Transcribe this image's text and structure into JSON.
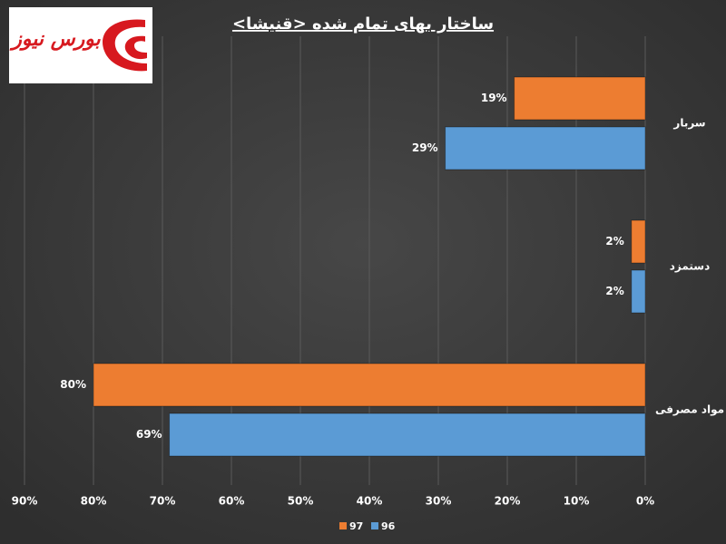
{
  "logo": "بورس نیوز",
  "chart_data": {
    "type": "barh",
    "title": "ساختار بهای تمام شده <قنیشا>",
    "categories": [
      "سربار",
      "دستمزد",
      "مواد مصرفی"
    ],
    "series": [
      {
        "name": "97",
        "color": "#ed7d31",
        "values": [
          19,
          2,
          80
        ],
        "value_labels": [
          "19%",
          "2%",
          "80%"
        ]
      },
      {
        "name": "96",
        "color": "#5b9bd5",
        "values": [
          29,
          2,
          69
        ],
        "value_labels": [
          "29%",
          "2%",
          "69%"
        ]
      }
    ],
    "xlim": [
      0,
      90
    ],
    "xticks": [
      {
        "value": 0,
        "label": "0%"
      },
      {
        "value": 10,
        "label": "10%"
      },
      {
        "value": 20,
        "label": "20%"
      },
      {
        "value": 30,
        "label": "30%"
      },
      {
        "value": 40,
        "label": "40%"
      },
      {
        "value": 50,
        "label": "50%"
      },
      {
        "value": 60,
        "label": "60%"
      },
      {
        "value": 70,
        "label": "70%"
      },
      {
        "value": 80,
        "label": "80%"
      },
      {
        "value": 90,
        "label": "90%"
      }
    ],
    "x_reversed": true,
    "grid": true,
    "legend": "bottom"
  }
}
